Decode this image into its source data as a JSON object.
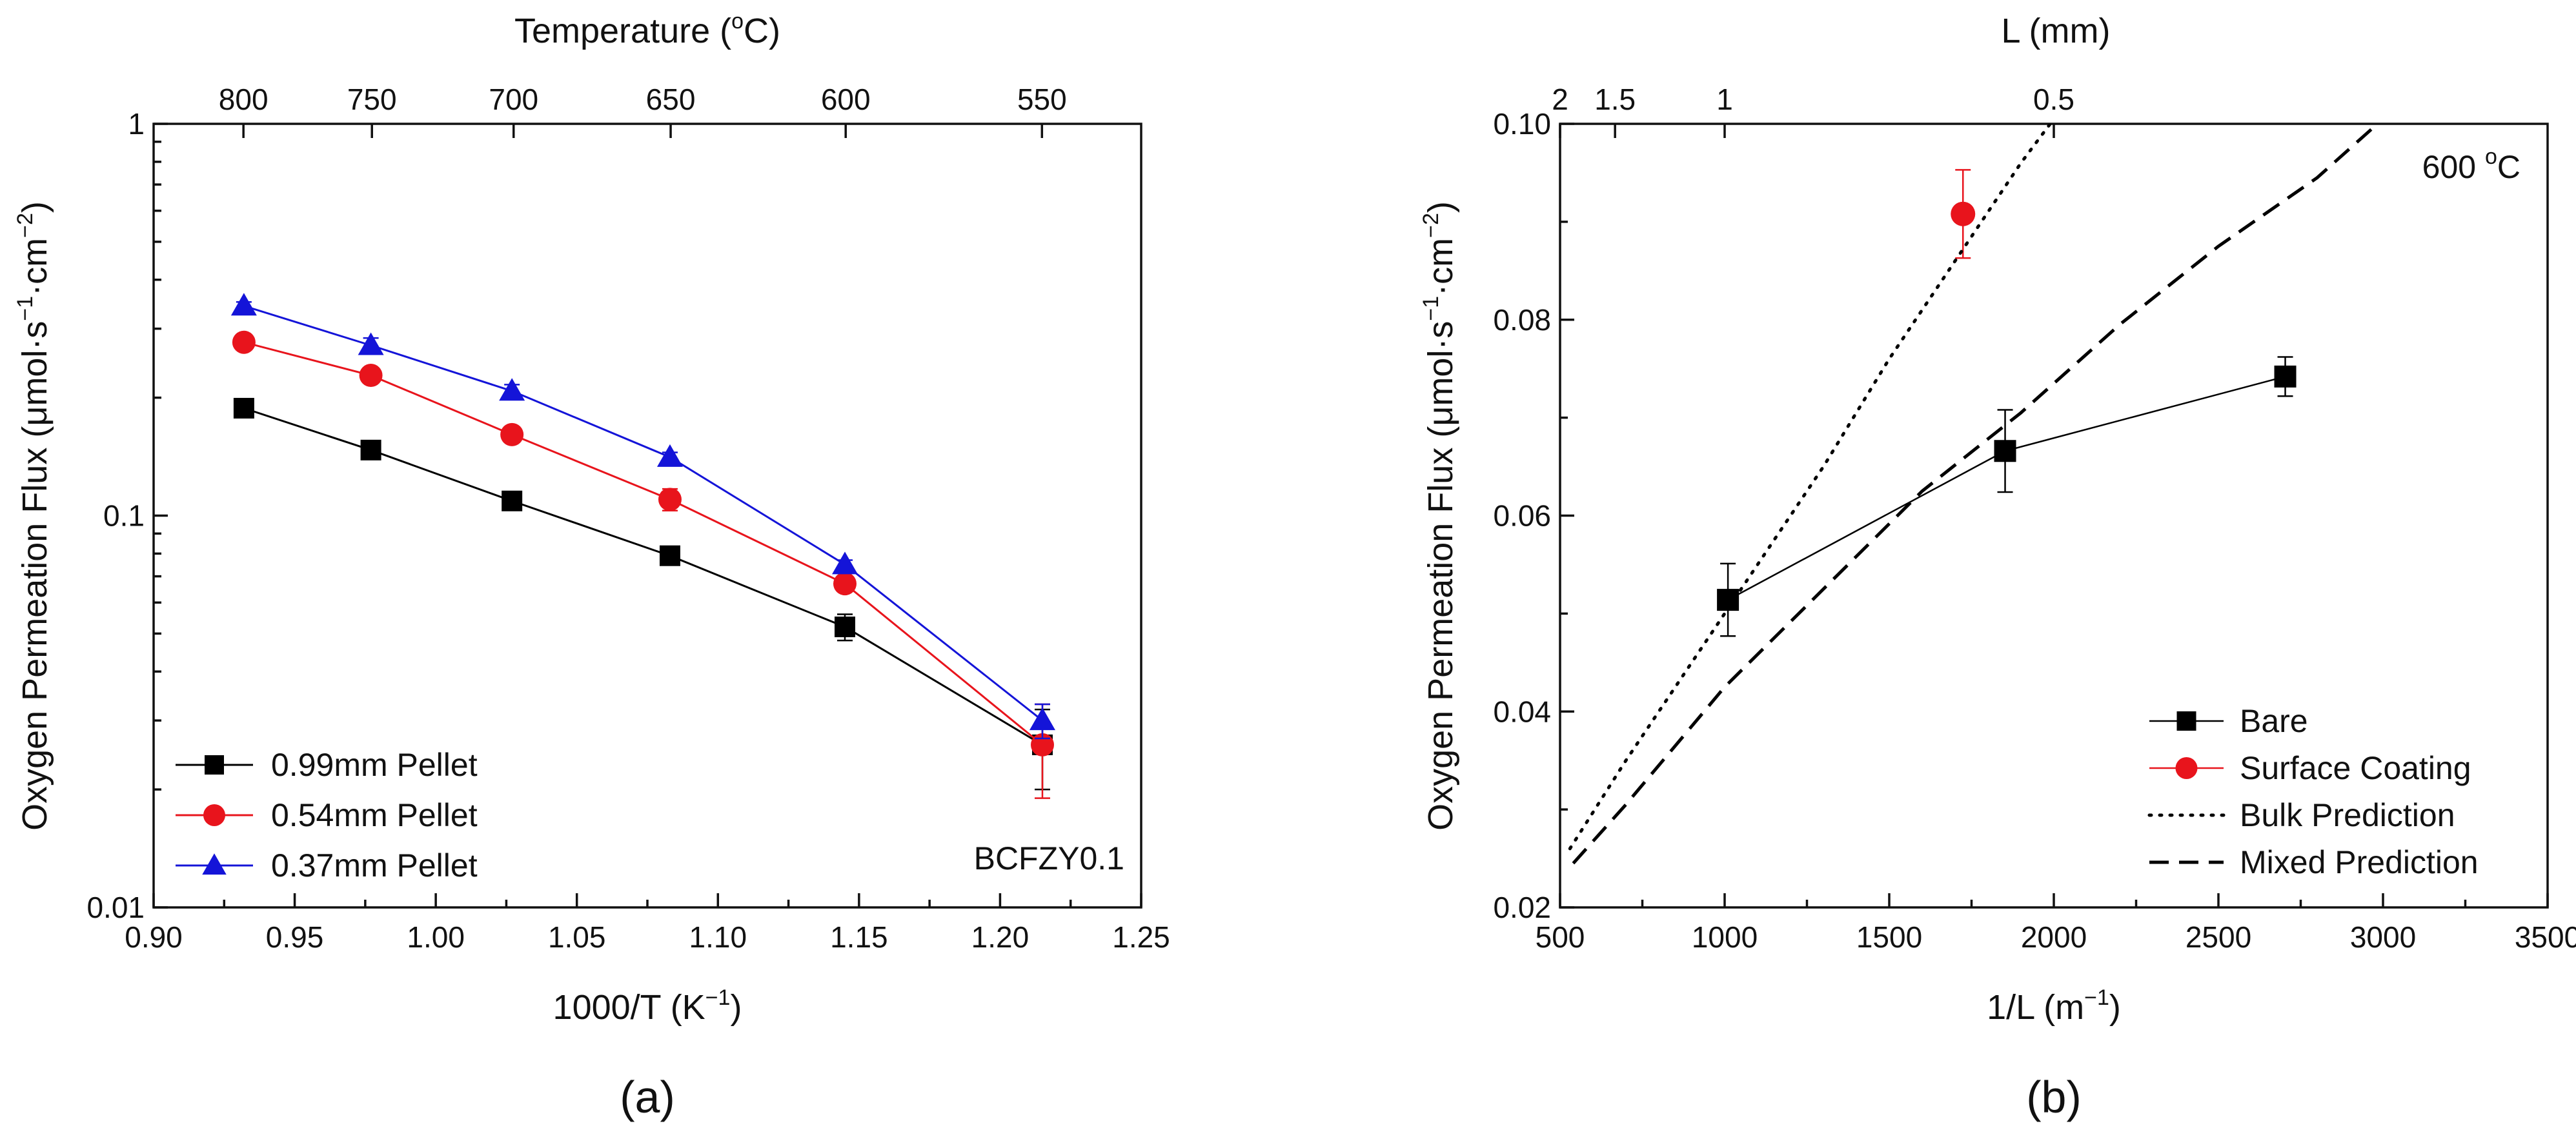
{
  "chart_data": [
    {
      "panel": "a",
      "type": "line",
      "caption": "(a)",
      "xlabel": "1000/T (K",
      "xlabel_sup": "−1",
      "xlabel_end": ")",
      "ylabel": "Oxygen Permeation Flux (μmol·s",
      "ylabel_sup1": "−1",
      "ylabel_mid": "·cm",
      "ylabel_sup2": "−2",
      "ylabel_end": ")",
      "top_label": "Temperature (",
      "top_label_sup": "o",
      "top_label_end": "C)",
      "xlim": [
        0.9,
        1.25
      ],
      "ylim": [
        0.01,
        1
      ],
      "yscale": "log",
      "xticks": [
        "0.90",
        "0.95",
        "1.00",
        "1.05",
        "1.10",
        "1.15",
        "1.20",
        "1.25"
      ],
      "yticks": [
        "0.01",
        "0.1",
        "1"
      ],
      "top_ticks": [
        "800",
        "750",
        "700",
        "650",
        "600",
        "550"
      ],
      "annotation": "BCFZY0.1",
      "legend_position": "bottom-left",
      "series": [
        {
          "name": "0.99mm Pellet",
          "color": "#000000",
          "marker": "square",
          "x": [
            0.932,
            0.977,
            1.027,
            1.083,
            1.145,
            1.215
          ],
          "y": [
            0.188,
            0.147,
            0.109,
            0.079,
            0.052,
            0.026
          ],
          "err": [
            0.004,
            0.004,
            0.005,
            0.004,
            0.004,
            0.006
          ]
        },
        {
          "name": "0.54mm Pellet",
          "color": "#e8141c",
          "marker": "circle",
          "x": [
            0.932,
            0.977,
            1.027,
            1.083,
            1.145,
            1.215
          ],
          "y": [
            0.277,
            0.228,
            0.161,
            0.11,
            0.067,
            0.026
          ],
          "err": [
            0.004,
            0.005,
            0.005,
            0.007,
            0.003,
            0.007
          ]
        },
        {
          "name": "0.37mm Pellet",
          "color": "#1414d8",
          "marker": "triangle",
          "x": [
            0.932,
            0.977,
            1.027,
            1.083,
            1.145,
            1.215
          ],
          "y": [
            0.343,
            0.272,
            0.208,
            0.141,
            0.075,
            0.03
          ],
          "err": [
            0.008,
            0.012,
            0.008,
            0.004,
            0.002,
            0.003
          ]
        }
      ]
    },
    {
      "panel": "b",
      "type": "line",
      "caption": "(b)",
      "xlabel": "1/L (m",
      "xlabel_sup": "−1",
      "xlabel_end": ")",
      "ylabel": "Oxygen Permeation Flux (μmol·s",
      "ylabel_sup1": "−1",
      "ylabel_mid": "·cm",
      "ylabel_sup2": "−2",
      "ylabel_end": ")",
      "top_label": "L (mm)",
      "xlim": [
        500,
        3500
      ],
      "ylim": [
        0.02,
        0.1
      ],
      "xticks": [
        "500",
        "1000",
        "1500",
        "2000",
        "2500",
        "3000",
        "3500"
      ],
      "yticks": [
        "0.02",
        "0.04",
        "0.06",
        "0.08",
        "0.10"
      ],
      "top_ticks": [
        {
          "label": "2",
          "inv": 500
        },
        {
          "label": "1.5",
          "inv": 667
        },
        {
          "label": "1",
          "inv": 1000
        },
        {
          "label": "0.5",
          "inv": 2000
        }
      ],
      "annotation": "600 ",
      "annotation_sup": "o",
      "annotation_end": "C",
      "legend_position": "bottom-right",
      "series": [
        {
          "name": "Bare",
          "color": "#000000",
          "marker": "square",
          "x": [
            1010,
            1852,
            2703
          ],
          "y": [
            0.0514,
            0.0666,
            0.0742
          ],
          "err": [
            0.0037,
            0.0042,
            0.002
          ]
        },
        {
          "name": "Surface Coating",
          "color": "#e8141c",
          "marker": "circle",
          "x": [
            1724
          ],
          "y": [
            0.0908
          ],
          "err": [
            0.0045
          ]
        },
        {
          "name": "Bulk Prediction",
          "color": "#000000",
          "style": "dotted",
          "x": [
            530,
            700,
            900,
            1100,
            1300,
            1500,
            1700,
            1900,
            2000
          ],
          "y": [
            0.026,
            0.035,
            0.045,
            0.055,
            0.065,
            0.076,
            0.086,
            0.096,
            0.1005
          ]
        },
        {
          "name": "Mixed Prediction",
          "color": "#000000",
          "style": "dashed",
          "x": [
            540,
            700,
            1000,
            1300,
            1600,
            1900,
            2200,
            2500,
            2800,
            3000
          ],
          "y": [
            0.0245,
            0.0305,
            0.0425,
            0.0525,
            0.0625,
            0.0705,
            0.0795,
            0.0875,
            0.0945,
            0.1005
          ]
        }
      ]
    }
  ]
}
